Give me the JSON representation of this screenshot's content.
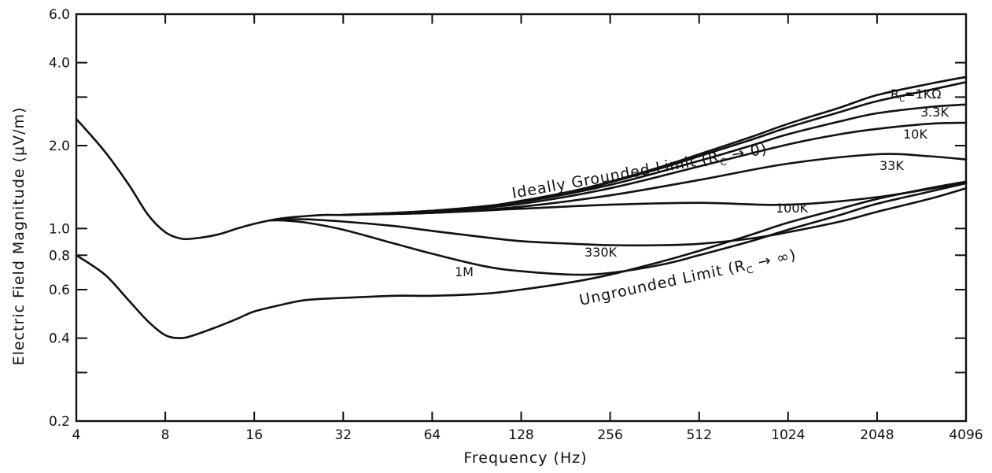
{
  "chart_data": {
    "type": "line",
    "title": "",
    "xlabel": "Frequency (Hz)",
    "ylabel": "Electric Field Magnitude (μV/m)",
    "xscale": "log2",
    "yscale": "log",
    "xlim": [
      4,
      4096
    ],
    "ylim": [
      0.2,
      6.0
    ],
    "grid": false,
    "legend": "none (inline curve labels)",
    "x_ticks": [
      4,
      8,
      16,
      32,
      64,
      128,
      256,
      512,
      1024,
      2048,
      4096
    ],
    "x_tick_labels": [
      "4",
      "8",
      "16",
      "32",
      "64",
      "128",
      "256",
      "512",
      "1024",
      "2048",
      "4096"
    ],
    "y_ticks": [
      0.2,
      0.4,
      0.6,
      0.8,
      1.0,
      2.0,
      4.0,
      6.0
    ],
    "y_tick_labels": [
      "0.2",
      "0.4",
      "0.6",
      "0.8",
      "1.0",
      "2.0",
      "4.0",
      "6.0"
    ],
    "y_minor_ticks": [
      0.3,
      3.0
    ],
    "series": [
      {
        "name": "Ideally Grounded Limit (Rₒ → 0)",
        "label": "Ideally Grounded Limit (R",
        "label_tail": " → 0)",
        "x": [
          4,
          5,
          6,
          7,
          8,
          9,
          10,
          12,
          14,
          16,
          18,
          20,
          24,
          28,
          32,
          40,
          48,
          64,
          96,
          128,
          192,
          256,
          384,
          512,
          768,
          1024,
          1536,
          2048,
          3072,
          4096
        ],
        "y": [
          2.5,
          1.9,
          1.45,
          1.12,
          0.97,
          0.92,
          0.92,
          0.95,
          1.0,
          1.04,
          1.07,
          1.09,
          1.11,
          1.12,
          1.12,
          1.13,
          1.14,
          1.16,
          1.2,
          1.26,
          1.37,
          1.48,
          1.68,
          1.86,
          2.15,
          2.4,
          2.75,
          3.05,
          3.35,
          3.55
        ]
      },
      {
        "name": "RC=1KΩ",
        "label": "R",
        "label_sub": "C",
        "label_tail": "=1KΩ",
        "x": [
          32,
          48,
          64,
          96,
          128,
          192,
          256,
          384,
          512,
          768,
          1024,
          1536,
          2048,
          3072,
          4096
        ],
        "y": [
          1.12,
          1.14,
          1.16,
          1.2,
          1.26,
          1.36,
          1.47,
          1.66,
          1.83,
          2.1,
          2.33,
          2.65,
          2.9,
          3.18,
          3.4
        ]
      },
      {
        "name": "3.3K",
        "label": "3.3K",
        "x": [
          32,
          64,
          128,
          256,
          512,
          768,
          1024,
          1536,
          2048,
          3072,
          4096
        ],
        "y": [
          1.12,
          1.16,
          1.25,
          1.44,
          1.76,
          2.0,
          2.2,
          2.45,
          2.62,
          2.76,
          2.82
        ]
      },
      {
        "name": "10K",
        "label": "10K",
        "x": [
          32,
          64,
          128,
          256,
          512,
          1024,
          1536,
          2048,
          3072,
          4096
        ],
        "y": [
          1.12,
          1.15,
          1.23,
          1.4,
          1.68,
          2.02,
          2.2,
          2.3,
          2.4,
          2.42
        ]
      },
      {
        "name": "33K",
        "label": "33K",
        "x": [
          32,
          64,
          128,
          256,
          512,
          1024,
          2048,
          3072,
          4096
        ],
        "y": [
          1.12,
          1.14,
          1.2,
          1.32,
          1.5,
          1.72,
          1.86,
          1.83,
          1.78
        ]
      },
      {
        "name": "100K",
        "label": "100K",
        "x": [
          32,
          64,
          128,
          256,
          512,
          1024,
          2048,
          4096
        ],
        "y": [
          1.12,
          1.14,
          1.18,
          1.22,
          1.24,
          1.22,
          1.3,
          1.47
        ]
      },
      {
        "name": "330K",
        "label": "330K",
        "x": [
          20,
          24,
          32,
          48,
          64,
          96,
          128,
          192,
          256,
          384,
          512,
          768,
          1024,
          1536,
          2048,
          3072,
          4096
        ],
        "y": [
          1.08,
          1.08,
          1.06,
          1.02,
          0.98,
          0.93,
          0.9,
          0.88,
          0.87,
          0.87,
          0.88,
          0.92,
          0.97,
          1.06,
          1.15,
          1.28,
          1.4
        ]
      },
      {
        "name": "1M",
        "label": "1M",
        "x": [
          18,
          20,
          24,
          32,
          48,
          64,
          96,
          128,
          192,
          256,
          384,
          512,
          768,
          1024,
          1536,
          2048,
          3072,
          4096
        ],
        "y": [
          1.07,
          1.07,
          1.05,
          0.99,
          0.88,
          0.81,
          0.73,
          0.7,
          0.68,
          0.69,
          0.74,
          0.8,
          0.9,
          0.99,
          1.12,
          1.23,
          1.36,
          1.46
        ]
      },
      {
        "name": "Ungrounded Limit (RC → ∞)",
        "label": "Ungrounded Limit (R",
        "label_tail": " → ∞)",
        "x": [
          4,
          5,
          6,
          7,
          8,
          9,
          10,
          12,
          14,
          16,
          20,
          24,
          32,
          48,
          64,
          96,
          128,
          192,
          256,
          384,
          512,
          768,
          1024,
          1536,
          2048,
          3072,
          4096
        ],
        "y": [
          0.8,
          0.68,
          0.55,
          0.46,
          0.41,
          0.4,
          0.41,
          0.44,
          0.47,
          0.5,
          0.53,
          0.55,
          0.56,
          0.57,
          0.57,
          0.58,
          0.6,
          0.64,
          0.68,
          0.76,
          0.83,
          0.95,
          1.05,
          1.18,
          1.28,
          1.4,
          1.48
        ]
      }
    ]
  }
}
